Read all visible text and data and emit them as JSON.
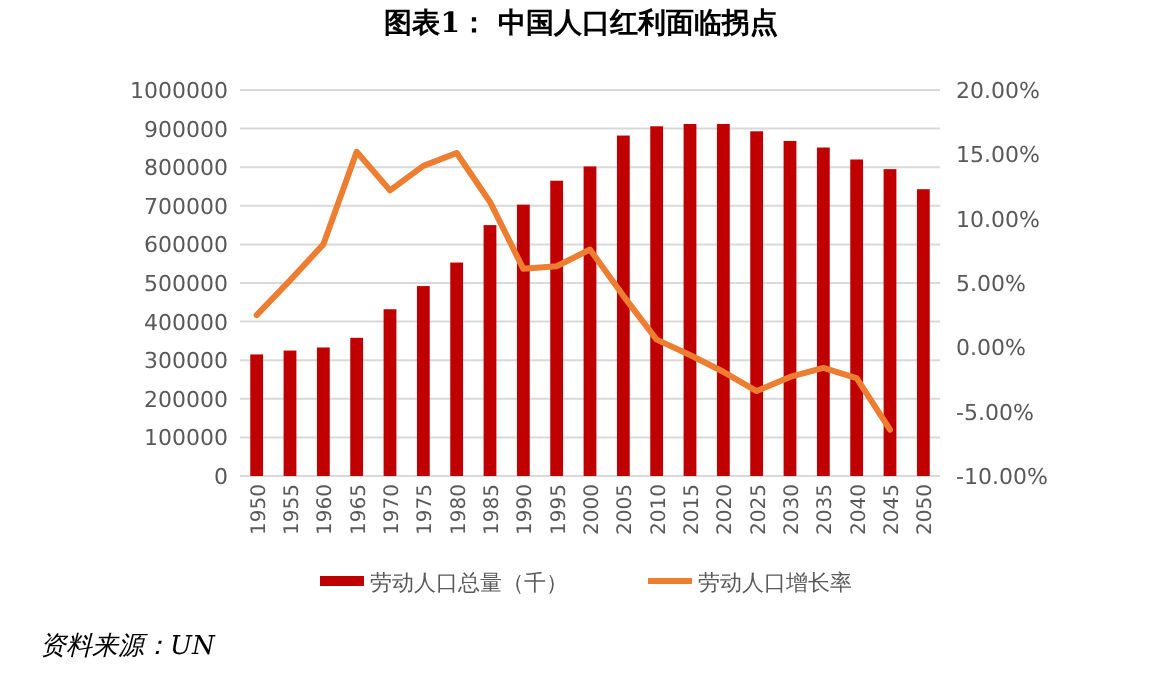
{
  "chart_data": {
    "type": "bar",
    "title": "图表1：  中国人口红利面临拐点",
    "categories": [
      "1950",
      "1955",
      "1960",
      "1965",
      "1970",
      "1975",
      "1980",
      "1985",
      "1990",
      "1995",
      "2000",
      "2005",
      "2010",
      "2015",
      "2020",
      "2025",
      "2030",
      "2035",
      "2040",
      "2045",
      "2050"
    ],
    "series": [
      {
        "name": "劳动人口总量（千）",
        "color": "#c00000",
        "values": [
          315000,
          325000,
          333000,
          358000,
          432000,
          492000,
          553000,
          650000,
          703000,
          765000,
          802000,
          882000,
          906000,
          912000,
          912000,
          893000,
          868000,
          851000,
          820000,
          795000,
          743000
        ]
      },
      {
        "name": "劳动人口增长率",
        "type": "line",
        "axis": "y2",
        "color": "#ed7d31",
        "values": [
          2.5,
          5.2,
          8.0,
          15.2,
          12.2,
          14.1,
          15.1,
          11.3,
          6.1,
          6.3,
          7.6,
          4.0,
          0.6,
          -0.6,
          -1.9,
          -3.4,
          -2.3,
          -1.6,
          -2.4,
          -6.4,
          null
        ]
      }
    ],
    "ylim": [
      0,
      1000000
    ],
    "yticks": [
      0,
      100000,
      200000,
      300000,
      400000,
      500000,
      600000,
      700000,
      800000,
      900000,
      1000000
    ],
    "y2lim": [
      -10,
      20
    ],
    "y2ticks": [
      {
        "value": 20,
        "label": "20.00%"
      },
      {
        "value": 15,
        "label": "15.00%"
      },
      {
        "value": 10,
        "label": "10.00%"
      },
      {
        "value": 5,
        "label": "5.00%"
      },
      {
        "value": 0,
        "label": "0.00%"
      },
      {
        "value": -5,
        "label": "-5.00%"
      },
      {
        "value": -10,
        "label": "-10.00%"
      }
    ],
    "grid": "y",
    "legend": "bottom",
    "annotations": [
      "资料来源：UN"
    ]
  }
}
